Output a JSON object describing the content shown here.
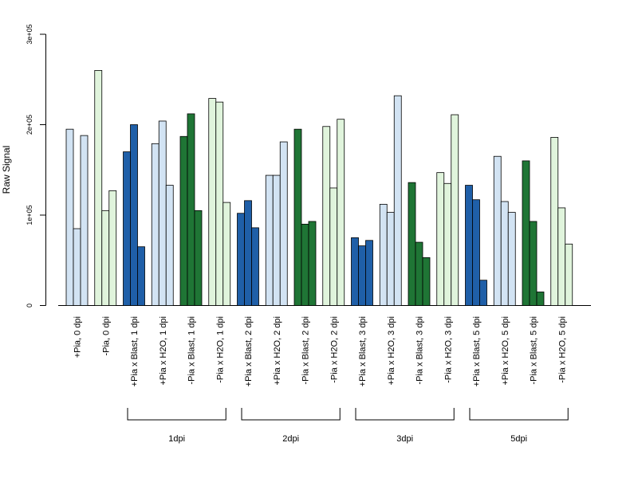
{
  "chart_data": {
    "type": "bar",
    "ylabel": "Raw Signal",
    "ylim": [
      0,
      300000
    ],
    "yticks": [
      0,
      100000,
      200000,
      300000
    ],
    "ytick_labels": [
      "0",
      "1e+05",
      "2e+05",
      "3e+05"
    ],
    "grid": false,
    "bars_per_group": 3,
    "categories": [
      "+Pia, 0 dpi",
      "-Pia, 0 dpi",
      "+Pia x Blast, 1 dpi",
      "+Pia x H2O, 1 dpi",
      "-Pia x Blast, 1 dpi",
      "-Pia x H2O, 1 dpi",
      "+Pia x Blast, 2 dpi",
      "+Pia x H2O, 2 dpi",
      "-Pia x Blast, 2 dpi",
      "-Pia x H2O, 2 dpi",
      "+Pia x Blast, 3 dpi",
      "+Pia x H2O, 3 dpi",
      "-Pia x Blast, 3 dpi",
      "-Pia x H2O, 3 dpi",
      "+Pia x Blast, 5 dpi",
      "+Pia x H2O, 5 dpi",
      "-Pia x Blast, 5 dpi",
      "-Pia x H2O, 5 dpi"
    ],
    "category_colors": [
      "#d2e3f3",
      "#e0f4dc",
      "#1f5fa8",
      "#d2e3f3",
      "#1f7535",
      "#e0f4dc",
      "#1f5fa8",
      "#d2e3f3",
      "#1f7535",
      "#e0f4dc",
      "#1f5fa8",
      "#d2e3f3",
      "#1f7535",
      "#e0f4dc",
      "#1f5fa8",
      "#d2e3f3",
      "#1f7535",
      "#e0f4dc"
    ],
    "values": [
      [
        195000,
        85000,
        188000
      ],
      [
        260000,
        105000,
        127000
      ],
      [
        170000,
        200000,
        65000
      ],
      [
        179000,
        204000,
        133000
      ],
      [
        187000,
        212000,
        105000
      ],
      [
        229000,
        225000,
        114000
      ],
      [
        102000,
        116000,
        86000
      ],
      [
        144000,
        144000,
        181000
      ],
      [
        195000,
        90000,
        93000
      ],
      [
        198000,
        130000,
        206000
      ],
      [
        75000,
        66000,
        72000
      ],
      [
        112000,
        103000,
        232000
      ],
      [
        136000,
        70000,
        53000
      ],
      [
        147000,
        135000,
        211000
      ],
      [
        133000,
        117000,
        28000
      ],
      [
        165000,
        115000,
        103000
      ],
      [
        160000,
        93000,
        15000
      ],
      [
        186000,
        108000,
        68000
      ]
    ],
    "groups": [
      {
        "label": "1dpi",
        "from": 2,
        "to": 5
      },
      {
        "label": "2dpi",
        "from": 6,
        "to": 9
      },
      {
        "label": "3dpi",
        "from": 10,
        "to": 13
      },
      {
        "label": "5dpi",
        "from": 14,
        "to": 17
      }
    ]
  }
}
